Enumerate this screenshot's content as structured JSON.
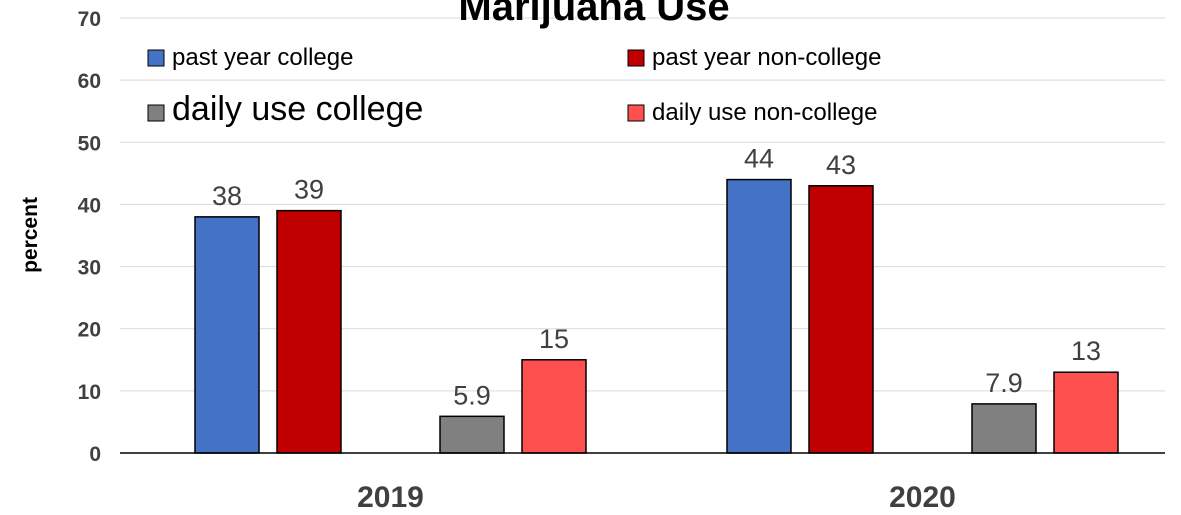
{
  "chart_data": {
    "type": "bar",
    "title": "Marijuana Use",
    "xlabel": "",
    "ylabel": "percent",
    "ylim": [
      0,
      70
    ],
    "yticks": [
      0,
      10,
      20,
      30,
      40,
      50,
      60,
      70
    ],
    "grid": true,
    "legend_position": "top",
    "categories": [
      "2019",
      "2020"
    ],
    "series": [
      {
        "name": "past year college",
        "color": "#4472c4",
        "values": [
          38,
          44
        ],
        "labels": [
          "38",
          "44"
        ]
      },
      {
        "name": "past year non-college",
        "color": "#c00000",
        "values": [
          39,
          43
        ],
        "labels": [
          "39",
          "43"
        ]
      },
      {
        "name": "daily use college",
        "color": "#808080",
        "values": [
          5.9,
          7.9
        ],
        "labels": [
          "5.9",
          "7.9"
        ]
      },
      {
        "name": "daily use non-college",
        "color": "#ff5050",
        "values": [
          15,
          13
        ],
        "labels": [
          "15",
          "13"
        ]
      }
    ]
  }
}
